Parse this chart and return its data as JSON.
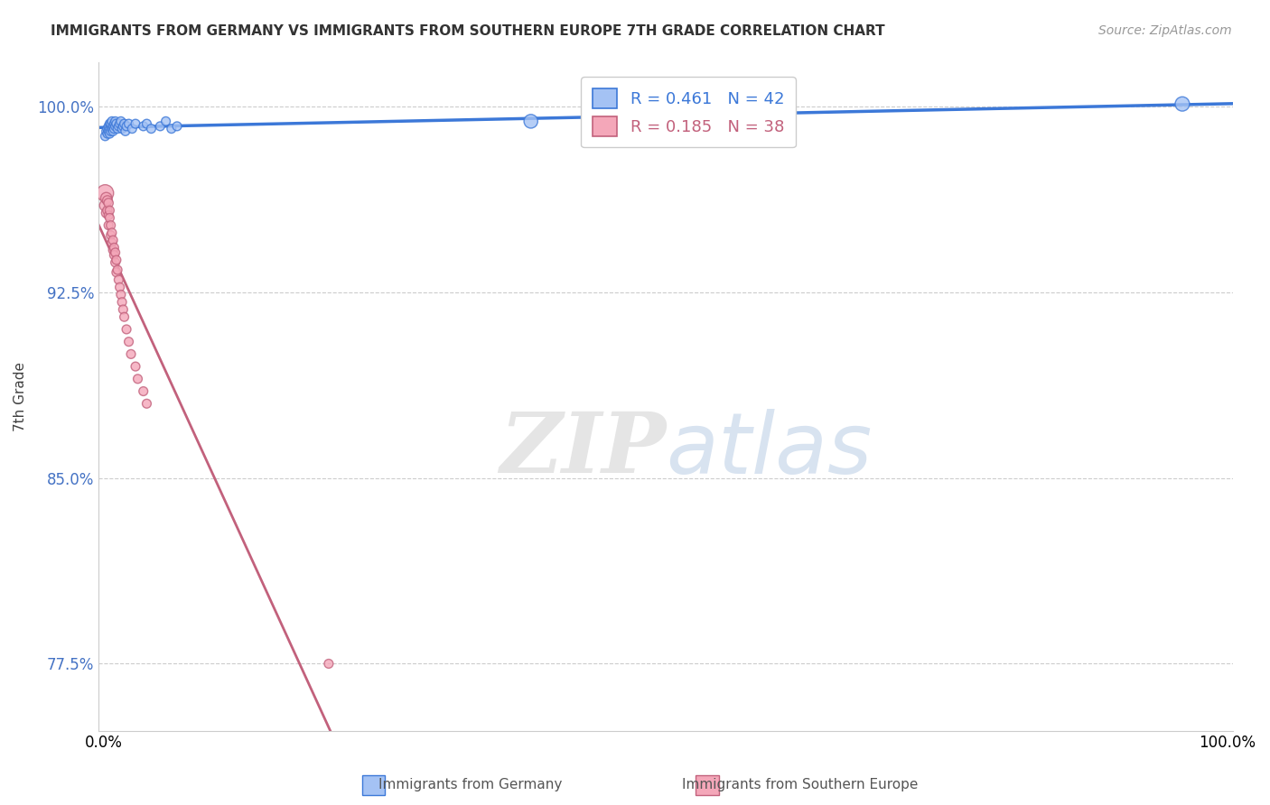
{
  "title": "IMMIGRANTS FROM GERMANY VS IMMIGRANTS FROM SOUTHERN EUROPE 7TH GRADE CORRELATION CHART",
  "source": "Source: ZipAtlas.com",
  "ylabel": "7th Grade",
  "xlim": [
    -0.005,
    1.005
  ],
  "ylim": [
    0.748,
    1.018
  ],
  "yticks": [
    0.775,
    0.85,
    0.925,
    1.0
  ],
  "ytick_labels": [
    "77.5%",
    "85.0%",
    "92.5%",
    "100.0%"
  ],
  "xtick_labels": [
    "0.0%",
    "100.0%"
  ],
  "blue_label": "Immigrants from Germany",
  "pink_label": "Immigrants from Southern Europe",
  "blue_R": 0.461,
  "blue_N": 42,
  "pink_R": 0.185,
  "pink_N": 38,
  "blue_color": "#a4c2f4",
  "pink_color": "#f4a7b9",
  "blue_edge_color": "#3c78d8",
  "pink_edge_color": "#c2617c",
  "blue_line_color": "#3c78d8",
  "pink_line_color": "#c2617c",
  "blue_x": [
    0.001,
    0.002,
    0.003,
    0.003,
    0.004,
    0.004,
    0.005,
    0.005,
    0.005,
    0.006,
    0.006,
    0.006,
    0.007,
    0.007,
    0.008,
    0.008,
    0.009,
    0.009,
    0.01,
    0.01,
    0.011,
    0.012,
    0.013,
    0.014,
    0.015,
    0.016,
    0.017,
    0.018,
    0.019,
    0.02,
    0.022,
    0.025,
    0.028,
    0.035,
    0.038,
    0.042,
    0.05,
    0.055,
    0.06,
    0.065,
    0.38,
    0.96
  ],
  "blue_y": [
    0.988,
    0.99,
    0.989,
    0.991,
    0.99,
    0.992,
    0.991,
    0.993,
    0.989,
    0.992,
    0.99,
    0.993,
    0.991,
    0.994,
    0.992,
    0.99,
    0.993,
    0.991,
    0.992,
    0.994,
    0.993,
    0.991,
    0.992,
    0.993,
    0.994,
    0.991,
    0.992,
    0.993,
    0.99,
    0.992,
    0.993,
    0.991,
    0.993,
    0.992,
    0.993,
    0.991,
    0.992,
    0.994,
    0.991,
    0.992,
    0.994,
    1.001
  ],
  "blue_sizes": [
    50,
    50,
    50,
    50,
    50,
    50,
    50,
    50,
    50,
    50,
    50,
    50,
    50,
    50,
    50,
    50,
    50,
    50,
    50,
    50,
    50,
    50,
    50,
    50,
    50,
    50,
    50,
    50,
    50,
    50,
    50,
    50,
    50,
    50,
    50,
    50,
    50,
    50,
    50,
    50,
    120,
    130
  ],
  "pink_x": [
    0.001,
    0.001,
    0.002,
    0.002,
    0.003,
    0.003,
    0.004,
    0.004,
    0.004,
    0.005,
    0.005,
    0.006,
    0.006,
    0.007,
    0.007,
    0.008,
    0.008,
    0.009,
    0.009,
    0.01,
    0.01,
    0.011,
    0.011,
    0.012,
    0.013,
    0.014,
    0.015,
    0.016,
    0.017,
    0.018,
    0.02,
    0.022,
    0.024,
    0.028,
    0.03,
    0.035,
    0.038,
    0.2
  ],
  "pink_y": [
    0.965,
    0.96,
    0.963,
    0.957,
    0.962,
    0.958,
    0.961,
    0.956,
    0.952,
    0.958,
    0.955,
    0.952,
    0.948,
    0.949,
    0.945,
    0.946,
    0.942,
    0.943,
    0.94,
    0.941,
    0.937,
    0.938,
    0.933,
    0.934,
    0.93,
    0.927,
    0.924,
    0.921,
    0.918,
    0.915,
    0.91,
    0.905,
    0.9,
    0.895,
    0.89,
    0.885,
    0.88,
    0.775
  ],
  "pink_sizes": [
    180,
    80,
    80,
    60,
    60,
    55,
    55,
    50,
    50,
    50,
    50,
    50,
    50,
    50,
    50,
    50,
    50,
    50,
    50,
    50,
    50,
    50,
    50,
    50,
    50,
    50,
    50,
    50,
    50,
    50,
    50,
    50,
    50,
    50,
    50,
    50,
    50,
    50
  ],
  "watermark_zip": "ZIP",
  "watermark_atlas": "atlas",
  "background_color": "#ffffff",
  "grid_color": "#cccccc",
  "tick_color": "#4472c4"
}
